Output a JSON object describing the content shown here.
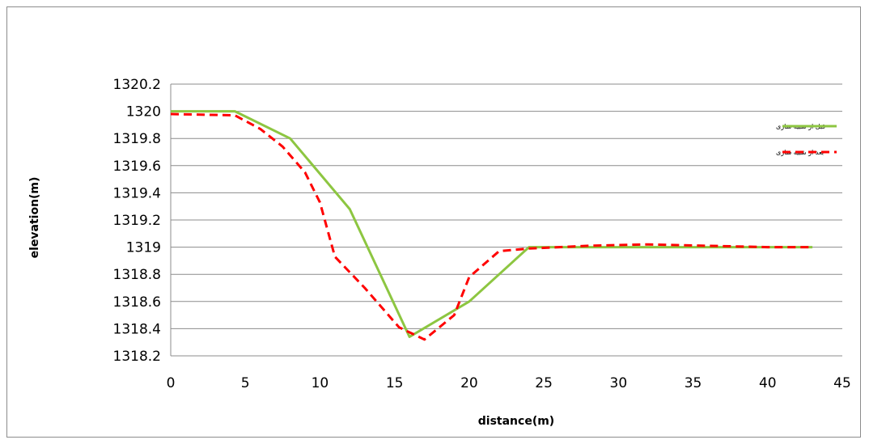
{
  "chart_data": {
    "type": "line",
    "xlabel": "distance(m)",
    "ylabel": "elevation(m)",
    "xlim": [
      0,
      45
    ],
    "ylim": [
      1318.2,
      1320.2
    ],
    "x_ticks": [
      "0",
      "5",
      "10",
      "15",
      "20",
      "25",
      "30",
      "35",
      "40",
      "45"
    ],
    "y_ticks": [
      "1320.2",
      "1320",
      "1319.8",
      "1319.6",
      "1319.4",
      "1319.2",
      "1319",
      "1318.8",
      "1318.6",
      "1318.4",
      "1318.2"
    ],
    "grid": true,
    "legend_position": "right",
    "series": [
      {
        "name": "قبل از شبیه سازی",
        "color": "#8dc641",
        "dash": "solid",
        "points": [
          [
            0,
            1320
          ],
          [
            4.3,
            1320
          ],
          [
            8,
            1319.8
          ],
          [
            12,
            1319.28
          ],
          [
            16,
            1318.34
          ],
          [
            20,
            1318.6
          ],
          [
            24,
            1319
          ],
          [
            28,
            1319
          ],
          [
            32,
            1319
          ],
          [
            36,
            1319
          ],
          [
            40,
            1319
          ],
          [
            43,
            1319
          ]
        ]
      },
      {
        "name": "بعد از شبیه سازی",
        "color": "#ff0000",
        "dash": "dashed",
        "points": [
          [
            0,
            1319.98
          ],
          [
            4.3,
            1319.97
          ],
          [
            6,
            1319.87
          ],
          [
            7.5,
            1319.74
          ],
          [
            9,
            1319.55
          ],
          [
            10,
            1319.33
          ],
          [
            11,
            1318.93
          ],
          [
            13,
            1318.7
          ],
          [
            15.3,
            1318.41
          ],
          [
            17,
            1318.32
          ],
          [
            19,
            1318.5
          ],
          [
            20,
            1318.78
          ],
          [
            22,
            1318.97
          ],
          [
            24,
            1318.99
          ],
          [
            28,
            1319.01
          ],
          [
            32,
            1319.02
          ],
          [
            36,
            1319.01
          ],
          [
            40,
            1319
          ],
          [
            43,
            1319
          ]
        ]
      }
    ]
  }
}
